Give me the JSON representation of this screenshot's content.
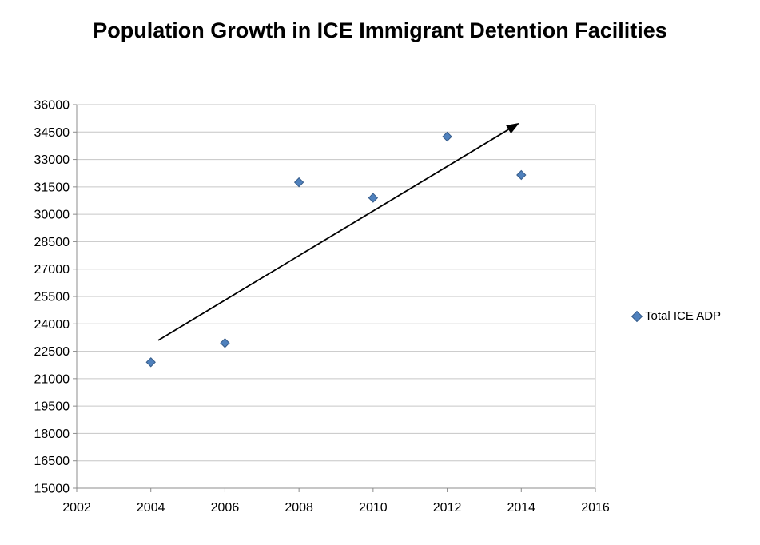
{
  "chart": {
    "title": "Population Growth in ICE Immigrant Detention Facilities",
    "legend_label": "Total ICE ADP"
  },
  "chart_data": {
    "type": "scatter",
    "title": "Population Growth in ICE Immigrant Detention Facilities",
    "series": [
      {
        "name": "Total ICE ADP",
        "points": [
          {
            "x": 2004,
            "y": 21900
          },
          {
            "x": 2006,
            "y": 22950
          },
          {
            "x": 2008,
            "y": 31750
          },
          {
            "x": 2010,
            "y": 30900
          },
          {
            "x": 2012,
            "y": 34250
          },
          {
            "x": 2014,
            "y": 32150
          }
        ]
      }
    ],
    "xlim": [
      2002,
      2016
    ],
    "ylim": [
      15000,
      36000
    ],
    "x_ticks": [
      2002,
      2004,
      2006,
      2008,
      2010,
      2012,
      2014,
      2016
    ],
    "y_ticks": [
      15000,
      16500,
      18000,
      19500,
      21000,
      22500,
      24000,
      25500,
      27000,
      28500,
      30000,
      31500,
      33000,
      34500,
      36000
    ],
    "grid": "horizontal",
    "legend_position": "right",
    "annotations": [
      {
        "type": "arrow",
        "from": {
          "x": 2004.2,
          "y": 23100
        },
        "to": {
          "x": 2013.95,
          "y": 35000
        }
      }
    ]
  },
  "colors": {
    "marker_fill": "#4f81bd",
    "marker_stroke": "#385d8a",
    "gridline": "#c6c6c6",
    "axis": "#8c8c8c",
    "arrow": "#000000",
    "text": "#000000"
  }
}
